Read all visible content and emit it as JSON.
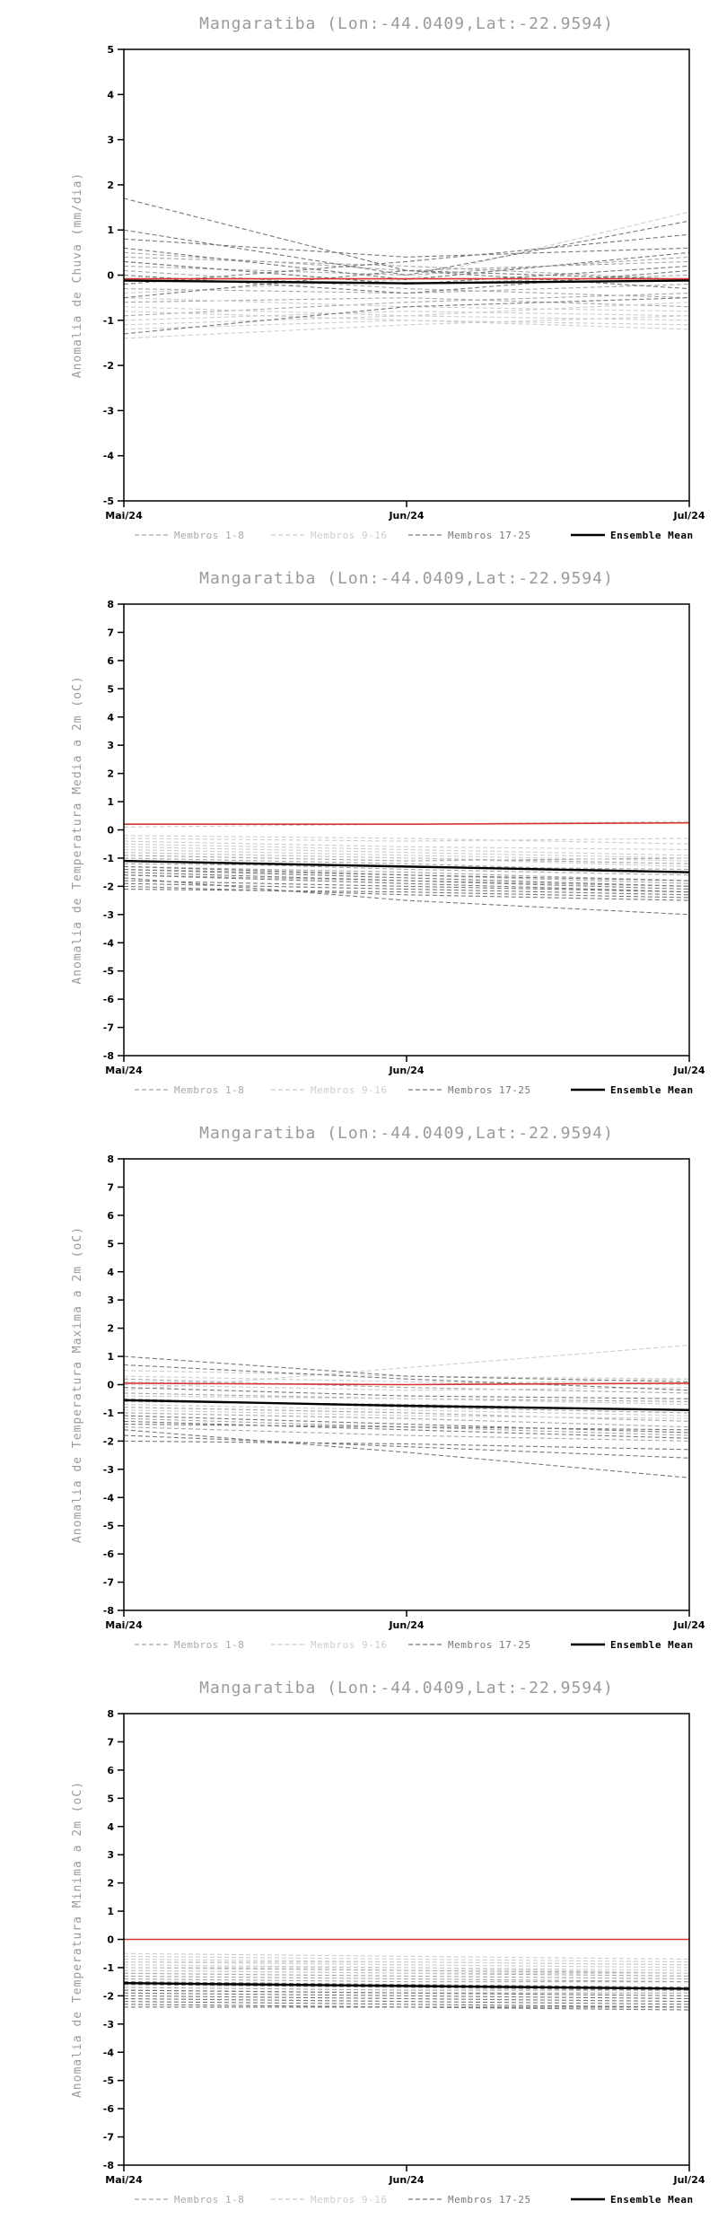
{
  "page": {
    "background": "#ffffff"
  },
  "style": {
    "title_color": "#9a9a9a",
    "ylabel_color": "#9a9a9a",
    "axis_color": "#000000",
    "tick_label_color": "#000000",
    "red_line_color": "#d83434",
    "mean_line_color": "#000000"
  },
  "legend": {
    "items": [
      {
        "label": "Membros 1-8",
        "color": "#a8a8a8",
        "dash": true
      },
      {
        "label": "Membros 9-16",
        "color": "#cdcdcd",
        "dash": true
      },
      {
        "label": "Membros 17-25",
        "color": "#787878",
        "dash": true
      },
      {
        "label": "Ensemble Mean",
        "color": "#000000",
        "dash": false
      }
    ]
  },
  "chart_data": [
    {
      "type": "line",
      "title": "Mangaratiba (Lon:-44.0409,Lat:-22.9594)",
      "ylabel": "Anomalia de Chuva (mm/dia)",
      "ylim": [
        -5,
        5
      ],
      "ytick_step": 1,
      "x_labels": [
        "Mai/24",
        "Jun/24",
        "Jul/24"
      ],
      "grid": false,
      "legend_position": "bottom",
      "red_line": [
        -0.08,
        -0.08,
        -0.08
      ],
      "ensemble_mean": [
        -0.12,
        -0.18,
        -0.12
      ],
      "groups": [
        {
          "name": "Membros 1-8",
          "members": [
            [
              0.5,
              0.1,
              0.3
            ],
            [
              0.3,
              -0.2,
              0.0
            ],
            [
              -0.3,
              -0.4,
              -0.2
            ],
            [
              0.2,
              0.0,
              0.4
            ],
            [
              -0.6,
              -0.5,
              -0.7
            ],
            [
              0.1,
              -0.3,
              -0.5
            ],
            [
              -0.9,
              -0.6,
              -0.4
            ],
            [
              0.4,
              0.2,
              -0.1
            ]
          ]
        },
        {
          "name": "Membros 9-16",
          "members": [
            [
              -1.0,
              -0.8,
              -0.9
            ],
            [
              -0.7,
              -0.9,
              -0.6
            ],
            [
              -1.2,
              -1.0,
              -1.1
            ],
            [
              -0.5,
              -0.7,
              -0.8
            ],
            [
              -1.4,
              -1.1,
              -0.9
            ],
            [
              -0.8,
              -1.0,
              -1.2
            ],
            [
              -0.4,
              -0.1,
              1.4
            ],
            [
              -1.1,
              -0.9,
              -1.0
            ]
          ]
        },
        {
          "name": "Membros 17-25",
          "members": [
            [
              1.7,
              0.1,
              -0.1
            ],
            [
              1.0,
              0.0,
              1.2
            ],
            [
              0.6,
              -0.1,
              0.5
            ],
            [
              -0.2,
              0.3,
              0.9
            ],
            [
              0.3,
              -0.2,
              0.2
            ],
            [
              -0.5,
              0.1,
              -0.3
            ],
            [
              0.8,
              0.4,
              0.6
            ],
            [
              -1.3,
              -0.7,
              -0.5
            ],
            [
              0.0,
              -0.4,
              0.1
            ]
          ]
        }
      ]
    },
    {
      "type": "line",
      "title": "Mangaratiba (Lon:-44.0409,Lat:-22.9594)",
      "ylabel": "Anomalia de Temperatura Media a 2m (oC)",
      "ylim": [
        -8,
        8
      ],
      "ytick_step": 1,
      "x_labels": [
        "Mai/24",
        "Jun/24",
        "Jul/24"
      ],
      "grid": false,
      "legend_position": "bottom",
      "red_line": [
        0.2,
        0.2,
        0.25
      ],
      "ensemble_mean": [
        -1.1,
        -1.3,
        -1.5
      ],
      "groups": [
        {
          "name": "Membros 1-8",
          "members": [
            [
              -1.0,
              -1.2,
              -1.5
            ],
            [
              -1.3,
              -1.5,
              -1.8
            ],
            [
              -0.8,
              -1.0,
              -1.2
            ],
            [
              -1.6,
              -1.8,
              -2.0
            ],
            [
              -1.1,
              -1.4,
              -1.6
            ],
            [
              -0.9,
              -1.1,
              -1.0
            ],
            [
              -1.4,
              -1.6,
              -1.9
            ],
            [
              -1.2,
              -1.3,
              -1.4
            ]
          ]
        },
        {
          "name": "Membros 9-16",
          "members": [
            [
              -0.5,
              -0.7,
              -0.9
            ],
            [
              -0.3,
              -0.4,
              -0.3
            ],
            [
              -0.7,
              -0.9,
              -1.1
            ],
            [
              -0.2,
              -0.3,
              -0.5
            ],
            [
              -0.6,
              -0.8,
              -1.0
            ],
            [
              -0.4,
              -0.6,
              -0.7
            ],
            [
              0.1,
              0.2,
              0.3
            ],
            [
              -0.8,
              -1.0,
              -1.3
            ]
          ]
        },
        {
          "name": "Membros 17-25",
          "members": [
            [
              -1.5,
              -1.8,
              -2.1
            ],
            [
              -1.8,
              -2.0,
              -2.2
            ],
            [
              -2.0,
              -2.3,
              -2.5
            ],
            [
              -1.7,
              -2.5,
              -3.0
            ],
            [
              -1.9,
              -2.1,
              -2.3
            ],
            [
              -1.6,
              -1.9,
              -2.2
            ],
            [
              -2.1,
              -2.2,
              -2.4
            ],
            [
              -1.3,
              -1.6,
              -1.8
            ],
            [
              -1.4,
              -1.7,
              -2.0
            ]
          ]
        }
      ]
    },
    {
      "type": "line",
      "title": "Mangaratiba (Lon:-44.0409,Lat:-22.9594)",
      "ylabel": "Anomalia de Temperatura Maxima a 2m (oC)",
      "ylim": [
        -8,
        8
      ],
      "ytick_step": 1,
      "x_labels": [
        "Mai/24",
        "Jun/24",
        "Jul/24"
      ],
      "grid": false,
      "legend_position": "bottom",
      "red_line": [
        0.05,
        0.0,
        0.05
      ],
      "ensemble_mean": [
        -0.55,
        -0.75,
        -0.9
      ],
      "groups": [
        {
          "name": "Membros 1-8",
          "members": [
            [
              -0.5,
              -0.8,
              -1.0
            ],
            [
              -1.0,
              -1.2,
              -1.5
            ],
            [
              0.2,
              -0.1,
              -0.3
            ],
            [
              -0.8,
              -1.0,
              -1.3
            ],
            [
              -1.2,
              -1.5,
              -1.8
            ],
            [
              -0.3,
              -0.5,
              -0.6
            ],
            [
              -1.5,
              -1.8,
              -2.0
            ],
            [
              -0.6,
              -0.7,
              -0.9
            ]
          ]
        },
        {
          "name": "Membros 9-16",
          "members": [
            [
              0.5,
              0.3,
              0.2
            ],
            [
              -0.2,
              0.6,
              1.4
            ],
            [
              0.0,
              -0.2,
              -0.1
            ],
            [
              -0.4,
              -0.5,
              -0.7
            ],
            [
              0.3,
              0.1,
              0.0
            ],
            [
              -0.7,
              -0.9,
              -1.1
            ],
            [
              0.1,
              0.0,
              0.2
            ],
            [
              -0.9,
              -1.1,
              -1.2
            ]
          ]
        },
        {
          "name": "Membros 17-25",
          "members": [
            [
              1.0,
              0.3,
              0.1
            ],
            [
              -1.3,
              -1.6,
              -1.9
            ],
            [
              -1.8,
              -2.2,
              -2.6
            ],
            [
              -1.6,
              -2.4,
              -3.3
            ],
            [
              -1.1,
              -1.4,
              -1.7
            ],
            [
              -2.0,
              -2.1,
              -2.3
            ],
            [
              -1.4,
              -1.5,
              -1.6
            ],
            [
              0.7,
              0.2,
              -0.2
            ],
            [
              -0.1,
              -0.4,
              -0.5
            ]
          ]
        }
      ]
    },
    {
      "type": "line",
      "title": "Mangaratiba (Lon:-44.0409,Lat:-22.9594)",
      "ylabel": "Anomalia de Temperatura Minima a 2m (oC)",
      "ylim": [
        -8,
        8
      ],
      "ytick_step": 1,
      "x_labels": [
        "Mai/24",
        "Jun/24",
        "Jul/24"
      ],
      "grid": false,
      "legend_position": "bottom",
      "red_line": [
        0.0,
        0.0,
        0.0
      ],
      "ensemble_mean": [
        -1.55,
        -1.65,
        -1.75
      ],
      "groups": [
        {
          "name": "Membros 1-8",
          "members": [
            [
              -1.2,
              -1.3,
              -1.4
            ],
            [
              -1.5,
              -1.6,
              -1.7
            ],
            [
              -1.0,
              -1.1,
              -1.2
            ],
            [
              -1.8,
              -1.9,
              -1.9
            ],
            [
              -1.4,
              -1.5,
              -1.5
            ],
            [
              -1.1,
              -1.2,
              -1.3
            ],
            [
              -1.7,
              -1.8,
              -1.8
            ],
            [
              -1.3,
              -1.4,
              -1.5
            ]
          ]
        },
        {
          "name": "Membros 9-16",
          "members": [
            [
              -0.8,
              -0.9,
              -1.0
            ],
            [
              -0.6,
              -0.7,
              -0.8
            ],
            [
              -1.0,
              -1.0,
              -1.1
            ],
            [
              -0.7,
              -0.8,
              -0.9
            ],
            [
              -0.9,
              -1.0,
              -1.2
            ],
            [
              -0.5,
              -0.6,
              -0.7
            ],
            [
              -1.1,
              -1.2,
              -1.2
            ],
            [
              -0.8,
              -0.8,
              -0.9
            ]
          ]
        },
        {
          "name": "Membros 17-25",
          "members": [
            [
              -1.9,
              -2.0,
              -2.1
            ],
            [
              -2.1,
              -2.2,
              -2.3
            ],
            [
              -2.3,
              -2.4,
              -2.4
            ],
            [
              -2.0,
              -2.1,
              -2.2
            ],
            [
              -1.8,
              -1.9,
              -2.0
            ],
            [
              -2.2,
              -2.3,
              -2.4
            ],
            [
              -1.6,
              -1.7,
              -1.8
            ],
            [
              -2.4,
              -2.4,
              -2.5
            ],
            [
              -1.5,
              -1.6,
              -1.7
            ]
          ]
        }
      ]
    }
  ]
}
